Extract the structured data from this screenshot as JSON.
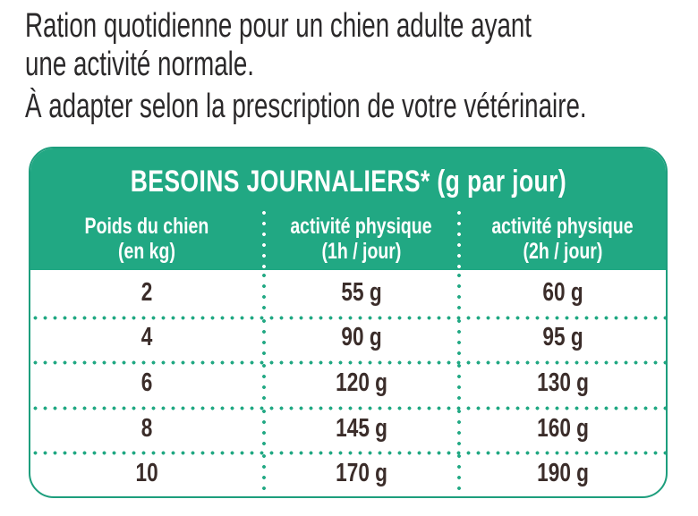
{
  "intro": {
    "line1": "Ration quotidienne pour un chien adulte ayant",
    "line2": "une activité normale.",
    "note": "À adapter selon la prescription de votre vétérinaire."
  },
  "table": {
    "title": "BESOINS JOURNALIERS* (g par jour)",
    "columns": [
      {
        "label": "Poids du chien",
        "sublabel": "(en kg)"
      },
      {
        "label": "activité physique",
        "sublabel": "(1h / jour)"
      },
      {
        "label": "activité physique",
        "sublabel": "(2h / jour)"
      }
    ],
    "rows": [
      [
        "2",
        "55 g",
        "60 g"
      ],
      [
        "4",
        "90 g",
        "95 g"
      ],
      [
        "6",
        "120 g",
        "130 g"
      ],
      [
        "8",
        "145 g",
        "160 g"
      ],
      [
        "10",
        "170 g",
        "190 g"
      ]
    ]
  },
  "colors": {
    "teal": "#21a883",
    "body_text": "#3b2d2a",
    "intro_text": "#2b292a",
    "header_text": "#ffffff"
  }
}
